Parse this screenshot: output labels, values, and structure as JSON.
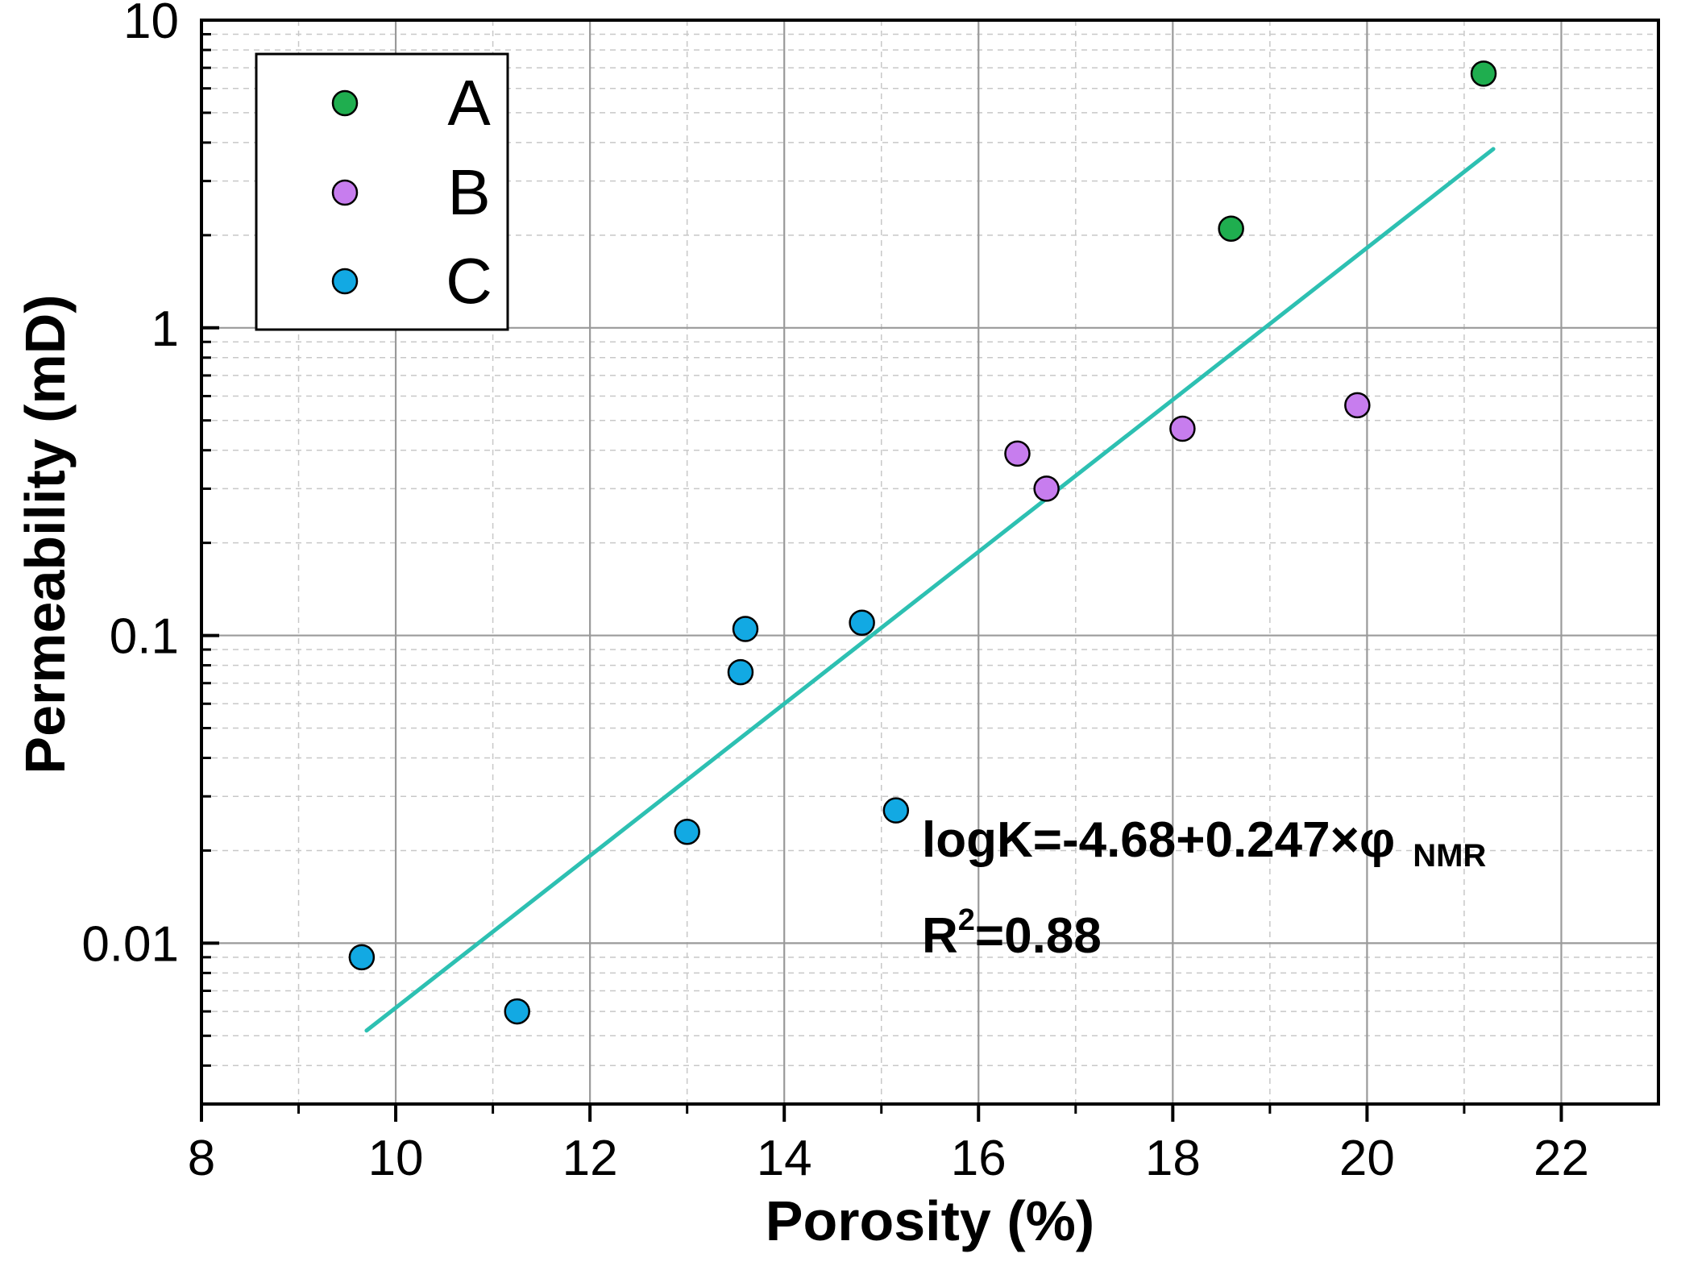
{
  "chart_data": {
    "type": "scatter",
    "xlabel": "Porosity (%)",
    "ylabel": "Permeability (mD)",
    "xlim": [
      8,
      23
    ],
    "ylim": [
      0.003,
      10
    ],
    "yscale": "log",
    "x_ticks": [
      8,
      10,
      12,
      14,
      16,
      18,
      20,
      22
    ],
    "x_tick_labels": [
      "8",
      "10",
      "12",
      "14",
      "16",
      "18",
      "20",
      "22"
    ],
    "y_ticks": [
      0.01,
      0.1,
      1,
      10
    ],
    "y_tick_labels": [
      "0.01",
      "0.1",
      "1",
      "10"
    ],
    "grid": true,
    "legend_position": "top-left",
    "series": [
      {
        "name": "A",
        "color": "#1fae4f",
        "points": [
          [
            18.6,
            2.1
          ],
          [
            21.2,
            6.7
          ]
        ]
      },
      {
        "name": "B",
        "color": "#c77dee",
        "points": [
          [
            16.4,
            0.39
          ],
          [
            16.7,
            0.3
          ],
          [
            18.1,
            0.47
          ],
          [
            19.9,
            0.56
          ]
        ]
      },
      {
        "name": "C",
        "color": "#12a9e3",
        "points": [
          [
            9.65,
            0.009
          ],
          [
            11.25,
            0.006
          ],
          [
            13.0,
            0.023
          ],
          [
            13.55,
            0.076
          ],
          [
            13.6,
            0.105
          ],
          [
            14.8,
            0.11
          ],
          [
            15.15,
            0.027
          ]
        ]
      }
    ],
    "fit_line": {
      "color": "#2dc0b2",
      "intercept": -4.68,
      "slope": 0.247,
      "x_range": [
        9.7,
        21.3
      ]
    },
    "annotation": {
      "equation_main": "logK=-4.68+0.247×φ",
      "equation_sub": "NMR",
      "r2_base": "R",
      "r2_sup": "2",
      "r2_value": "=0.88"
    }
  }
}
